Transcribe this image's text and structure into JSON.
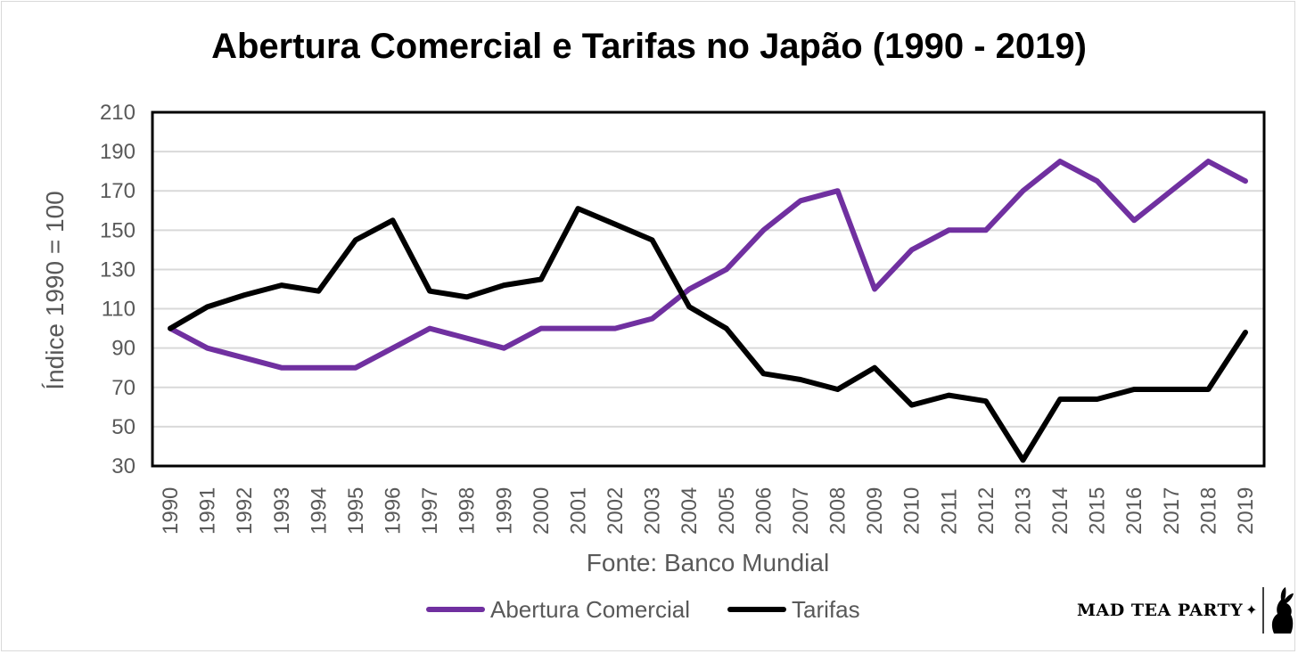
{
  "chart_data": {
    "type": "line",
    "title": "Abertura Comercial e Tarifas no Japão (1990 - 2019)",
    "xlabel": "Fonte: Banco Mundial",
    "ylabel": "Índice 1990 = 100",
    "ylim": [
      30,
      210
    ],
    "yticks": [
      "210",
      "190",
      "170",
      "150",
      "130",
      "110",
      "90",
      "70",
      "50",
      "30"
    ],
    "categories": [
      "1990",
      "1991",
      "1992",
      "1993",
      "1994",
      "1995",
      "1996",
      "1997",
      "1998",
      "1999",
      "2000",
      "2001",
      "2002",
      "2003",
      "2004",
      "2005",
      "2006",
      "2007",
      "2008",
      "2009",
      "2010",
      "2011",
      "2012",
      "2013",
      "2014",
      "2015",
      "2016",
      "2017",
      "2018",
      "2019"
    ],
    "grid": true,
    "legend_position": "bottom",
    "series": [
      {
        "name": "Abertura Comercial",
        "color": "#7030a0",
        "values": [
          100,
          90,
          85,
          80,
          80,
          80,
          90,
          100,
          95,
          90,
          100,
          100,
          100,
          105,
          120,
          130,
          150,
          165,
          170,
          120,
          140,
          150,
          150,
          170,
          185,
          175,
          155,
          170,
          185,
          175
        ]
      },
      {
        "name": "Tarifas",
        "color": "#000000",
        "values": [
          100,
          111,
          117,
          122,
          119,
          145,
          155,
          119,
          116,
          122,
          125,
          161,
          153,
          145,
          111,
          100,
          77,
          74,
          69,
          80,
          61,
          66,
          63,
          33,
          64,
          64,
          69,
          69,
          69,
          98
        ]
      }
    ]
  },
  "brand": {
    "name": "MAD TEA PARTY",
    "star": "✦"
  }
}
